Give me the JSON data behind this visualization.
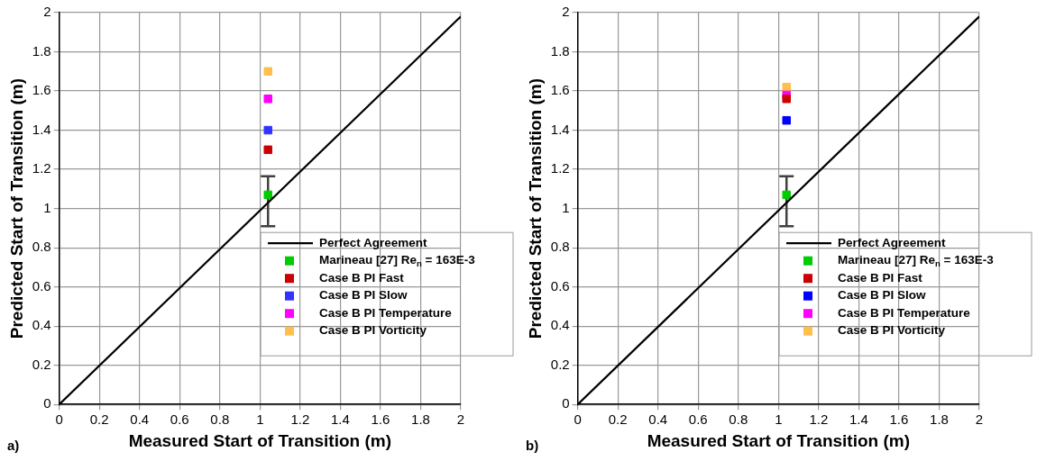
{
  "chart_data": [
    {
      "type": "scatter",
      "xlabel": "Measured Start of Transition (m)",
      "ylabel": "Predicted Start of Transition (m)",
      "annotations": [
        "a)"
      ],
      "xlim": [
        0,
        2
      ],
      "ylim": [
        0,
        2
      ],
      "xticks": [
        0,
        0.2,
        0.4,
        0.6,
        0.8,
        1,
        1.2,
        1.4,
        1.6,
        1.8,
        2
      ],
      "yticks": [
        0,
        0.2,
        0.4,
        0.6,
        0.8,
        1,
        1.2,
        1.4,
        1.6,
        1.8,
        2
      ],
      "grid": true,
      "legend": "bottom right",
      "marker": "square",
      "series": [
        {
          "type": "line",
          "name": "Perfect Agreement",
          "color": "#000000",
          "marker": "none",
          "x": [
            0,
            2
          ],
          "values": [
            0,
            1.98
          ]
        },
        {
          "name": "Marineau [27] Re$_{n}$ = 163E-3",
          "color": "#00cc00",
          "x": [
            1.04
          ],
          "values": [
            1.07
          ],
          "errors": [
            [
              0.91,
              1.165
            ]
          ]
        },
        {
          "name": "Case B PI Fast",
          "color": "#cc0000",
          "x": [
            1.04
          ],
          "values": [
            1.3
          ]
        },
        {
          "name": "Case B PI Slow",
          "color": "#3333ff",
          "x": [
            1.04
          ],
          "values": [
            1.4
          ]
        },
        {
          "name": "Case B PI Temperature",
          "color": "#ff00ff",
          "x": [
            1.04
          ],
          "values": [
            1.56
          ]
        },
        {
          "name": "Case B PI Vorticity",
          "color": "#ffbf4d",
          "x": [
            1.04
          ],
          "values": [
            1.7
          ]
        }
      ]
    },
    {
      "type": "scatter",
      "xlabel": "Measured Start of Transition (m)",
      "ylabel": "Predicted Start of Transition (m)",
      "annotations": [
        "b)"
      ],
      "xlim": [
        0,
        2
      ],
      "ylim": [
        0,
        2
      ],
      "xticks": [
        0,
        0.2,
        0.4,
        0.6,
        0.8,
        1,
        1.2,
        1.4,
        1.6,
        1.8,
        2
      ],
      "yticks": [
        0,
        0.2,
        0.4,
        0.6,
        0.8,
        1,
        1.2,
        1.4,
        1.6,
        1.8,
        2
      ],
      "grid": true,
      "legend": "bottom right",
      "marker": "square",
      "series": [
        {
          "type": "line",
          "name": "Perfect Agreement",
          "color": "#000000",
          "marker": "none",
          "x": [
            0,
            2
          ],
          "values": [
            0,
            1.98
          ]
        },
        {
          "name": "Marineau [27] Re$_{n}$ = 163E-3",
          "color": "#00cc00",
          "x": [
            1.04
          ],
          "values": [
            1.07
          ],
          "errors": [
            [
              0.91,
              1.165
            ]
          ]
        },
        {
          "name": "Case B PI Fast",
          "color": "#cc0000",
          "x": [
            1.04
          ],
          "values": [
            1.56
          ]
        },
        {
          "name": "Case B PI Slow",
          "color": "#0000ff",
          "x": [
            1.04
          ],
          "values": [
            1.45
          ]
        },
        {
          "name": "Case B PI Temperature",
          "color": "#ff00ff",
          "x": [
            1.04
          ],
          "values": [
            1.58
          ]
        },
        {
          "name": "Case B PI Vorticity",
          "color": "#ffbf4d",
          "x": [
            1.04
          ],
          "values": [
            1.62
          ]
        }
      ]
    }
  ]
}
